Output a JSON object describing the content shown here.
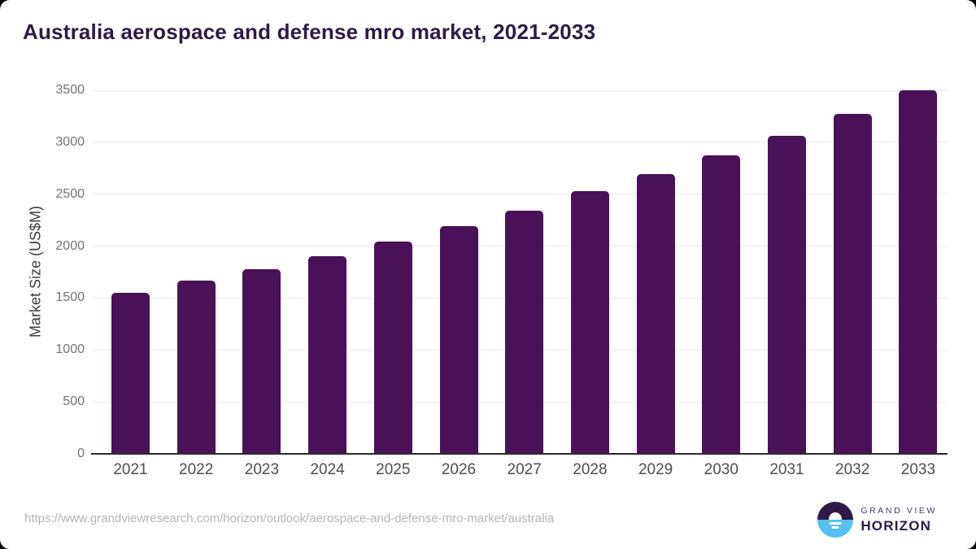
{
  "page": {
    "footer": {
      "source_url": "https://www.grandviewresearch.com/horizon/outlook/aerospace-and-defense-mro-market/australia"
    },
    "logo": {
      "brand_top": "GRAND VIEW",
      "brand_bottom": "HORIZON"
    }
  },
  "chart_data": {
    "type": "bar",
    "title": "Australia aerospace and defense mro market, 2021-2033",
    "categories": [
      "2021",
      "2022",
      "2023",
      "2024",
      "2025",
      "2026",
      "2027",
      "2028",
      "2029",
      "2030",
      "2031",
      "2032",
      "2033"
    ],
    "values": [
      1550,
      1665,
      1775,
      1900,
      2040,
      2190,
      2345,
      2530,
      2690,
      2870,
      3060,
      3270,
      3500
    ],
    "xlabel": "",
    "ylabel": "Market Size (US$M)",
    "ylim": [
      0,
      3500
    ],
    "yticks": [
      0,
      500,
      1000,
      1500,
      2000,
      2500,
      3000,
      3500
    ],
    "grid": "horizontal",
    "legend": false,
    "bar_color": "#4a1158",
    "colors": {
      "title": "#2e1a47",
      "axis_title": "#3d3d3d",
      "y_tick_label": "#737373",
      "x_tick_label": "#4d4d4d",
      "gridline": "#ebebeb",
      "baseline": "#2b2b2b",
      "background": "#ffffff",
      "footer_text": "#b5b5b5",
      "logo_purple": "#2e1a47",
      "logo_blue": "#56c1f1"
    }
  }
}
